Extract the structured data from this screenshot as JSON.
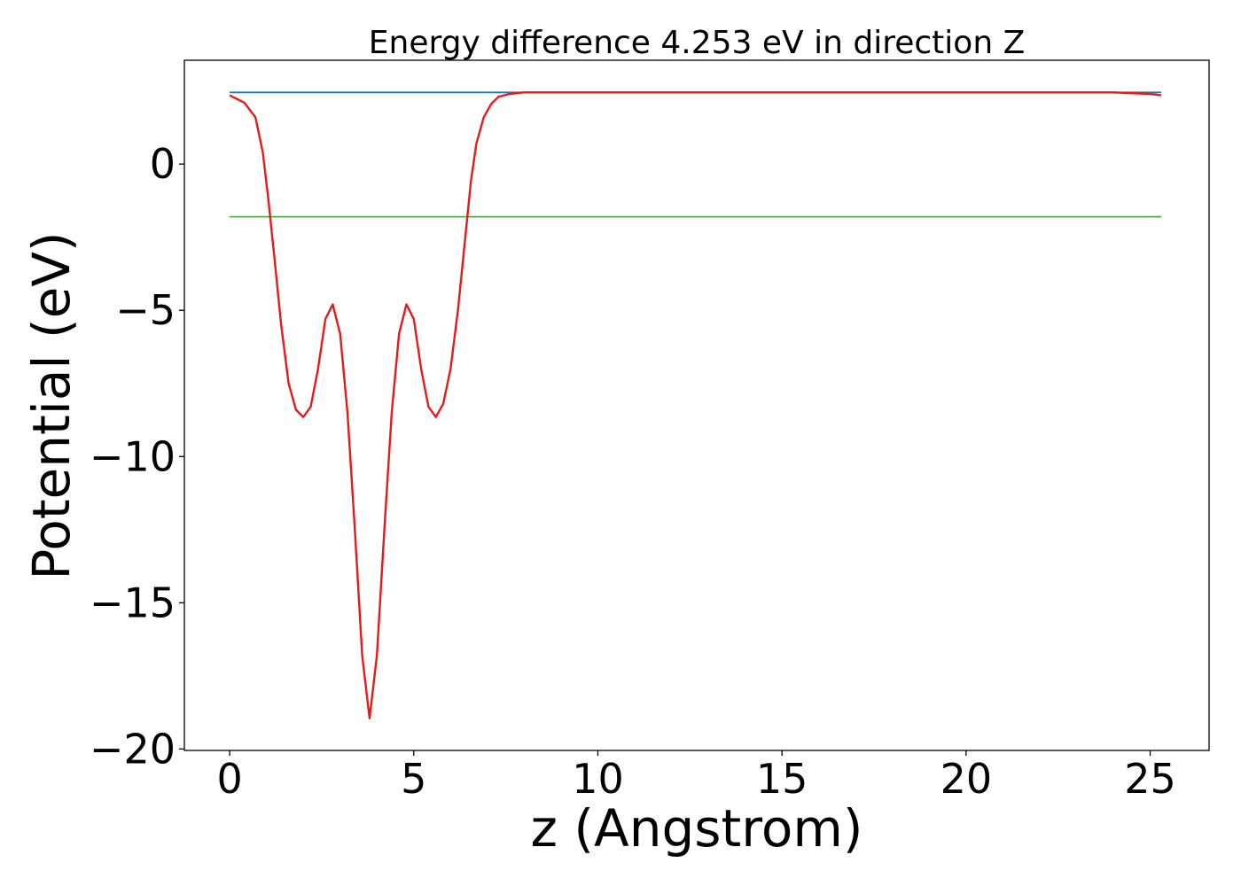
{
  "chart_data": {
    "type": "line",
    "title": "Energy difference 4.253 eV in direction Z",
    "xlabel": "z (Angstrom)",
    "ylabel": "Potential (eV)",
    "xlim": [
      -1.23,
      26.6
    ],
    "ylim": [
      -20.05,
      3.55
    ],
    "xticks": [
      0,
      5,
      10,
      15,
      20,
      25
    ],
    "xtick_labels": [
      "0",
      "5",
      "10",
      "15",
      "20",
      "25"
    ],
    "yticks": [
      0,
      -5,
      -10,
      -15,
      -20
    ],
    "ytick_labels": [
      "0",
      "−5",
      "−10",
      "−15",
      "−20"
    ],
    "grid": false,
    "series": [
      {
        "color": "#1f77b4",
        "x": [
          0,
          25.3
        ],
        "y": [
          2.45,
          2.45
        ]
      },
      {
        "color": "#4daf4a",
        "x": [
          0,
          25.3
        ],
        "y": [
          -1.8,
          -1.8
        ]
      },
      {
        "color": "#e41a1c",
        "x": [
          0,
          0.4,
          0.7,
          0.9,
          1.05,
          1.2,
          1.4,
          1.6,
          1.8,
          2.0,
          2.2,
          2.4,
          2.6,
          2.8,
          3.0,
          3.2,
          3.4,
          3.6,
          3.8,
          4.0,
          4.2,
          4.4,
          4.6,
          4.8,
          5.0,
          5.2,
          5.4,
          5.6,
          5.8,
          6.0,
          6.2,
          6.4,
          6.55,
          6.7,
          6.9,
          7.1,
          7.3,
          7.6,
          8.0,
          8.5,
          9.0,
          10,
          15,
          20,
          24,
          25,
          25.3
        ],
        "y": [
          2.35,
          2.1,
          1.6,
          0.4,
          -1.2,
          -3.0,
          -5.5,
          -7.5,
          -8.4,
          -8.65,
          -8.3,
          -7.0,
          -5.3,
          -4.8,
          -5.8,
          -8.5,
          -12.5,
          -16.8,
          -18.95,
          -16.8,
          -12.5,
          -8.5,
          -5.8,
          -4.8,
          -5.3,
          -7.0,
          -8.3,
          -8.65,
          -8.2,
          -7.0,
          -5.0,
          -2.5,
          -0.6,
          0.7,
          1.6,
          2.05,
          2.3,
          2.4,
          2.45,
          2.45,
          2.45,
          2.45,
          2.45,
          2.45,
          2.45,
          2.4,
          2.35
        ]
      }
    ]
  }
}
